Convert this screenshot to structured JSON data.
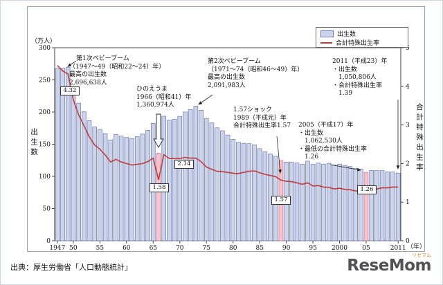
{
  "figure": {
    "legend": {
      "births_label": "出生数",
      "tfr_label": "合計特殊出生率"
    },
    "axis": {
      "left_unit": "（万人）",
      "left_title": "出生数",
      "right_title": "合計特殊出生率",
      "x_unit": "（年）",
      "left_ticks": [
        300,
        250,
        200,
        150,
        100,
        50,
        0
      ],
      "right_ticks": [
        5,
        4,
        3,
        2,
        1,
        0
      ],
      "x_ticks": [
        {
          "label": "1947",
          "year": 1947
        },
        {
          "label": "50",
          "year": 1950
        },
        {
          "label": "55",
          "year": 1955
        },
        {
          "label": "60",
          "year": 1960
        },
        {
          "label": "65",
          "year": 1965
        },
        {
          "label": "70",
          "year": 1970
        },
        {
          "label": "75",
          "year": 1975
        },
        {
          "label": "80",
          "year": 1980
        },
        {
          "label": "85",
          "year": 1985
        },
        {
          "label": "90",
          "year": 1990
        },
        {
          "label": "95",
          "year": 1995
        },
        {
          "label": "2000",
          "year": 2000
        },
        {
          "label": "05",
          "year": 2005
        },
        {
          "label": "2011",
          "year": 2011
        }
      ]
    },
    "annotations": {
      "boom1": {
        "lines": [
          "第1次ベビーブーム",
          "（1947～49（昭和22～24）年）",
          "最高の出生数",
          "2,696,638人"
        ]
      },
      "hinoeuma": {
        "lines": [
          "ひのえうま",
          "1966（昭和41）年",
          "1,360,974人"
        ]
      },
      "boom2": {
        "lines": [
          "第2次ベビーブーム",
          "（1971～74（昭和46～49）年）",
          "最高の出生数",
          "2,091,983人"
        ]
      },
      "shock157": {
        "lines": [
          "1.57ショック",
          "1989（平成元）年",
          "合計特殊出生率1.57"
        ]
      },
      "y2005": {
        "lines": [
          "2005（平成17）年",
          "・出生数",
          "　1,062,530人",
          "・最低の合計特殊出生率",
          "　1.26"
        ]
      },
      "y2011": {
        "lines": [
          "2011（平成23）年",
          "・出生数",
          "　1,050,806人",
          "・合計特殊出生率",
          "　1.39"
        ]
      }
    },
    "value_boxes": [
      {
        "text": "4.32"
      },
      {
        "text": "1.58"
      },
      {
        "text": "2.14"
      },
      {
        "text": "1.57"
      },
      {
        "text": "1.26"
      }
    ],
    "colors": {
      "bar_fill": "#ccd4ec",
      "bar_stroke": "#6b79ad",
      "bar_highlight": "#f6c3cf",
      "bar_highlight_stroke": "#d4708a",
      "line": "#c03a3a",
      "frame": "#444444",
      "outer_border": "#9aa2ad"
    },
    "source": "出典：厚生労働省「人口動態統計」",
    "logo": {
      "text": "ReseMom",
      "ruby": "リセマム"
    }
  },
  "chart_data": {
    "type": "bar+line",
    "x": [
      1947,
      1948,
      1949,
      1950,
      1951,
      1952,
      1953,
      1954,
      1955,
      1956,
      1957,
      1958,
      1959,
      1960,
      1961,
      1962,
      1963,
      1964,
      1965,
      1966,
      1967,
      1968,
      1969,
      1970,
      1971,
      1972,
      1973,
      1974,
      1975,
      1976,
      1977,
      1978,
      1979,
      1980,
      1981,
      1982,
      1983,
      1984,
      1985,
      1986,
      1987,
      1988,
      1989,
      1990,
      1991,
      1992,
      1993,
      1994,
      1995,
      1996,
      1997,
      1998,
      1999,
      2000,
      2001,
      2002,
      2003,
      2004,
      2005,
      2006,
      2007,
      2008,
      2009,
      2010,
      2011
    ],
    "series": [
      {
        "name": "出生数",
        "type": "bar",
        "unit": "万人",
        "values": [
          267.9,
          268.2,
          269.7,
          233.8,
          213.8,
          200.5,
          186.8,
          176.9,
          173.1,
          166.5,
          156.7,
          165.3,
          162.6,
          160.6,
          158.9,
          161.8,
          165.9,
          171.7,
          182.4,
          136.1,
          193.6,
          187.2,
          188.9,
          193.4,
          200.1,
          203.9,
          209.2,
          202.9,
          190.1,
          183.3,
          175.5,
          170.9,
          164.3,
          157.7,
          152.9,
          151.5,
          150.9,
          148.9,
          143.2,
          138.3,
          134.7,
          131.4,
          124.7,
          122.2,
          122.3,
          120.9,
          118.8,
          123.8,
          118.7,
          120.7,
          119.2,
          120.3,
          117.8,
          119.1,
          117.1,
          115.4,
          112.4,
          111.1,
          106.3,
          109.3,
          109.0,
          109.1,
          107.0,
          107.1,
          105.1
        ]
      },
      {
        "name": "合計特殊出生率",
        "type": "line",
        "values": [
          4.54,
          4.4,
          4.32,
          3.65,
          3.26,
          2.98,
          2.69,
          2.48,
          2.37,
          2.22,
          2.04,
          2.11,
          2.04,
          2.0,
          1.96,
          1.98,
          2.0,
          2.05,
          2.14,
          1.58,
          2.23,
          2.13,
          2.13,
          2.13,
          2.16,
          2.14,
          2.14,
          2.05,
          1.91,
          1.85,
          1.8,
          1.79,
          1.77,
          1.75,
          1.74,
          1.77,
          1.8,
          1.81,
          1.76,
          1.72,
          1.69,
          1.66,
          1.57,
          1.54,
          1.53,
          1.5,
          1.46,
          1.5,
          1.42,
          1.43,
          1.39,
          1.38,
          1.34,
          1.36,
          1.33,
          1.32,
          1.29,
          1.29,
          1.26,
          1.32,
          1.34,
          1.37,
          1.37,
          1.39,
          1.39
        ]
      }
    ],
    "highlighted_years": [
      1966,
      1989,
      2005
    ],
    "title": "",
    "xlabel": "（年）",
    "ylabel_left": "出生数（万人）",
    "ylabel_right": "合計特殊出生率",
    "ylim_left": [
      0,
      300
    ],
    "ylim_right": [
      0,
      5
    ],
    "grid": false,
    "legend_position": "top-right"
  }
}
